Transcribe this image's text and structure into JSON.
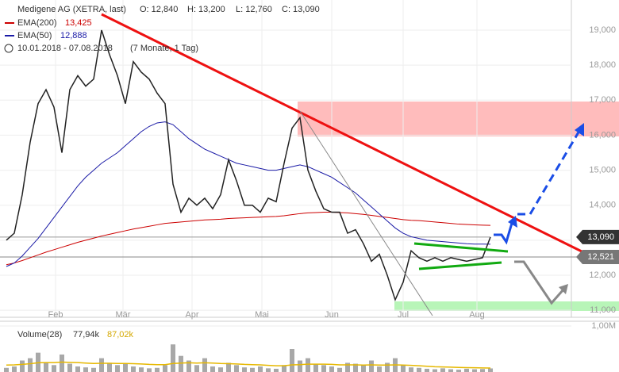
{
  "chart_data": {
    "type": "line",
    "title": "Medigene AG (XETRA, last)",
    "ohlc": [
      {
        "value": 12840,
        "label": "O: 12,840"
      },
      {
        "value": 13200,
        "label": "H: 13,200"
      },
      {
        "value": 12760,
        "label": "L: 12,760"
      },
      {
        "value": 13090,
        "label": "C: 13,090"
      }
    ],
    "period": "10.01.2018 - 07.08.2018",
    "period_note": "(7 Monate, 1 Tag)",
    "xlim": [
      -0.8,
      71.2
    ],
    "ylim": [
      10800,
      19860
    ],
    "yticks": [
      {
        "value": 11000,
        "label": "11,000"
      },
      {
        "value": 12000,
        "label": "12,000"
      },
      {
        "value": 13000,
        "label": "13,000"
      },
      {
        "value": 14000,
        "label": "14,000"
      },
      {
        "value": 15000,
        "label": "15,000"
      },
      {
        "value": 16000,
        "label": "16,000"
      },
      {
        "value": 17000,
        "label": "17,000"
      },
      {
        "value": 18000,
        "label": "18,000"
      },
      {
        "value": 19000,
        "label": "19,000"
      }
    ],
    "xticks": [
      {
        "value": 6.2,
        "label": "Feb"
      },
      {
        "value": 14.7,
        "label": "Mär"
      },
      {
        "value": 23.4,
        "label": "Apr"
      },
      {
        "value": 32.2,
        "label": "Mai"
      },
      {
        "value": 41,
        "label": "Jun"
      },
      {
        "value": 50,
        "label": "Jul"
      },
      {
        "value": 59.3,
        "label": "Aug"
      }
    ],
    "levels": [
      {
        "value": 13090,
        "label": "13,090",
        "color": "#333333"
      },
      {
        "value": 12521,
        "label": "12,521",
        "color": "#777777"
      }
    ],
    "series": [
      {
        "name": "Medigene AG (XETRA, last)",
        "color": "#222222",
        "values": [
          13000,
          13200,
          14300,
          15800,
          16900,
          17300,
          16800,
          15500,
          17300,
          17700,
          17400,
          17600,
          19000,
          18300,
          17700,
          16900,
          18100,
          17800,
          17600,
          17200,
          16900,
          14600,
          13800,
          14200,
          14000,
          14200,
          13900,
          14300,
          15300,
          14700,
          14000,
          14000,
          13800,
          14200,
          14100,
          15200,
          16200,
          16500,
          15000,
          14400,
          13900,
          13800,
          13800,
          13200,
          13300,
          12900,
          12400,
          12600,
          12000,
          11300,
          11800,
          12700,
          12500,
          12400,
          12500,
          12400,
          12500,
          12450,
          12400,
          12450,
          12500,
          13090
        ]
      },
      {
        "name": "EMA(200)",
        "last_label": "13,425",
        "color": "#cc0000",
        "values": [
          12300,
          12350,
          12420,
          12500,
          12580,
          12660,
          12730,
          12800,
          12870,
          12940,
          13000,
          13060,
          13120,
          13170,
          13220,
          13270,
          13320,
          13360,
          13400,
          13440,
          13480,
          13500,
          13520,
          13540,
          13560,
          13580,
          13590,
          13600,
          13620,
          13630,
          13640,
          13650,
          13660,
          13670,
          13680,
          13700,
          13730,
          13760,
          13780,
          13790,
          13800,
          13800,
          13790,
          13780,
          13760,
          13740,
          13710,
          13680,
          13650,
          13620,
          13590,
          13570,
          13560,
          13540,
          13520,
          13500,
          13480,
          13460,
          13450,
          13440,
          13430,
          13425
        ]
      },
      {
        "name": "EMA(50)",
        "last_label": "12,888",
        "color": "#1a1aa6",
        "values": [
          12250,
          12350,
          12550,
          12800,
          13050,
          13350,
          13650,
          13950,
          14250,
          14550,
          14800,
          15000,
          15200,
          15350,
          15500,
          15700,
          15900,
          16100,
          16250,
          16350,
          16380,
          16300,
          16100,
          15900,
          15750,
          15600,
          15500,
          15400,
          15300,
          15200,
          15150,
          15100,
          15050,
          15000,
          15000,
          15050,
          15100,
          15150,
          15100,
          15000,
          14900,
          14800,
          14650,
          14500,
          14350,
          14150,
          13950,
          13750,
          13550,
          13350,
          13200,
          13100,
          13050,
          13000,
          12980,
          12960,
          12940,
          12920,
          12900,
          12890,
          12890,
          12888
        ]
      }
    ],
    "volume": {
      "name": "Volume(28)",
      "last_label": "77,94k",
      "avg_label": "87,02k",
      "color": "#a8a8a8",
      "avg_color": "#e6b800",
      "ylim": [
        0,
        1000000
      ],
      "yticks": [
        {
          "value": 1000000,
          "label": "1,00M"
        }
      ],
      "values": [
        90000,
        120000,
        250000,
        300000,
        420000,
        200000,
        150000,
        380000,
        180000,
        120000,
        100000,
        90000,
        300000,
        200000,
        150000,
        180000,
        120000,
        100000,
        80000,
        90000,
        150000,
        600000,
        350000,
        250000,
        150000,
        300000,
        120000,
        100000,
        200000,
        150000,
        100000,
        90000,
        120000,
        80000,
        70000,
        150000,
        500000,
        250000,
        300000,
        180000,
        150000,
        120000,
        90000,
        200000,
        180000,
        150000,
        250000,
        120000,
        200000,
        300000,
        150000,
        100000,
        90000,
        70000,
        60000,
        80000,
        60000,
        50000,
        70000,
        60000,
        65000,
        77940
      ],
      "avg": [
        150000,
        155000,
        165000,
        180000,
        200000,
        205000,
        205000,
        215000,
        210000,
        205000,
        195000,
        185000,
        190000,
        190000,
        185000,
        185000,
        180000,
        175000,
        165000,
        160000,
        160000,
        185000,
        195000,
        200000,
        195000,
        200000,
        195000,
        185000,
        180000,
        175000,
        165000,
        160000,
        155000,
        145000,
        135000,
        135000,
        155000,
        160000,
        170000,
        170000,
        170000,
        165000,
        155000,
        155000,
        155000,
        150000,
        155000,
        150000,
        150000,
        155000,
        150000,
        145000,
        135000,
        125000,
        115000,
        110000,
        105000,
        100000,
        95000,
        92000,
        89000,
        87020
      ]
    }
  }
}
